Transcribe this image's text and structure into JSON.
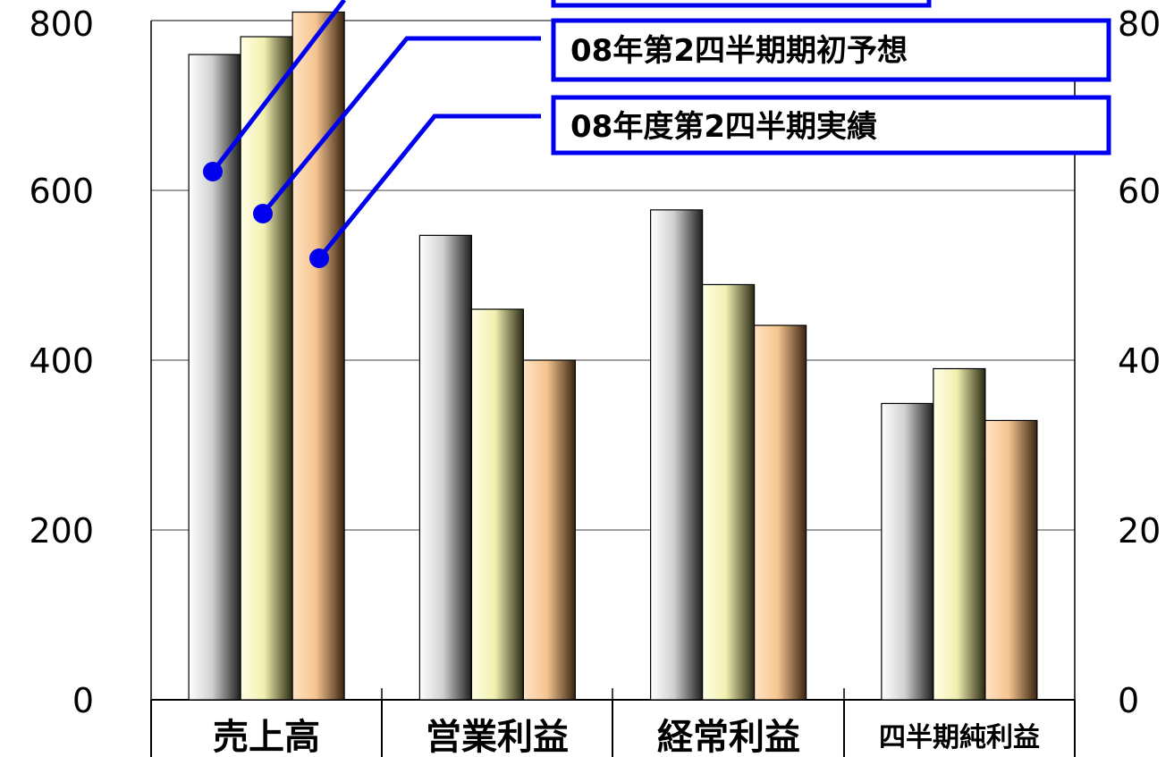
{
  "chart_data": {
    "type": "bar",
    "categories": [
      "売上高",
      "営業利益",
      "経常利益",
      "四半期純利益"
    ],
    "series": [
      {
        "name": "",
        "color": "#b8b8b8",
        "values": [
          760,
          547,
          577,
          349
        ]
      },
      {
        "name": "08年第2四半期期初予想",
        "color": "#f4f2b4",
        "values": [
          781,
          460,
          489,
          390
        ]
      },
      {
        "name": "08年度第2四半期実績",
        "color": "#f6c590",
        "values": [
          810,
          400,
          441,
          329
        ]
      }
    ],
    "y_left": {
      "min": 0,
      "max": 800,
      "ticks": [
        "0",
        "200",
        "400",
        "600",
        "800"
      ]
    },
    "y_right": {
      "ticks": [
        "0",
        "20",
        "40",
        "60",
        "80"
      ]
    },
    "grid": true,
    "legend_style": "callout boxes with blue leader lines"
  }
}
